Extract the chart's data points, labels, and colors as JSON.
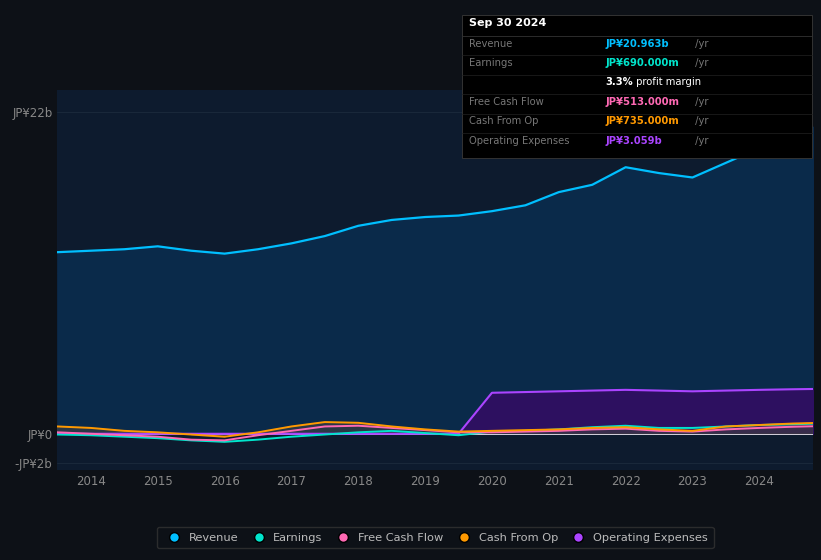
{
  "bg_color": "#0d1117",
  "plot_bg_color": "#0d1b2e",
  "years": [
    2013.5,
    2014.0,
    2014.5,
    2015.0,
    2015.5,
    2016.0,
    2016.5,
    2017.0,
    2017.5,
    2018.0,
    2018.5,
    2019.0,
    2019.5,
    2020.0,
    2020.5,
    2021.0,
    2021.5,
    2022.0,
    2022.5,
    2023.0,
    2023.5,
    2024.0,
    2024.5,
    2024.8
  ],
  "revenue": [
    12.4,
    12.5,
    12.6,
    12.8,
    12.5,
    12.3,
    12.6,
    13.0,
    13.5,
    14.2,
    14.6,
    14.8,
    14.9,
    15.2,
    15.6,
    16.5,
    17.0,
    18.2,
    17.8,
    17.5,
    18.5,
    19.5,
    20.5,
    20.963
  ],
  "earnings": [
    -0.05,
    -0.1,
    -0.2,
    -0.3,
    -0.45,
    -0.55,
    -0.4,
    -0.2,
    -0.05,
    0.1,
    0.2,
    0.05,
    -0.1,
    0.15,
    0.2,
    0.3,
    0.45,
    0.55,
    0.4,
    0.4,
    0.5,
    0.6,
    0.65,
    0.69
  ],
  "free_cash_flow": [
    0.1,
    0.0,
    -0.1,
    -0.2,
    -0.4,
    -0.45,
    -0.1,
    0.2,
    0.5,
    0.55,
    0.4,
    0.25,
    0.1,
    0.1,
    0.15,
    0.2,
    0.3,
    0.35,
    0.2,
    0.15,
    0.3,
    0.4,
    0.48,
    0.513
  ],
  "cash_from_op": [
    0.5,
    0.4,
    0.2,
    0.1,
    -0.05,
    -0.2,
    0.1,
    0.5,
    0.8,
    0.75,
    0.5,
    0.3,
    0.15,
    0.2,
    0.25,
    0.3,
    0.4,
    0.45,
    0.3,
    0.2,
    0.5,
    0.6,
    0.7,
    0.735
  ],
  "operating_expenses": [
    0.0,
    0.0,
    0.0,
    0.0,
    0.0,
    0.0,
    0.0,
    0.0,
    0.0,
    0.0,
    0.0,
    0.0,
    0.0,
    2.8,
    2.85,
    2.9,
    2.95,
    3.0,
    2.95,
    2.9,
    2.95,
    3.0,
    3.04,
    3.059
  ],
  "revenue_color": "#00bfff",
  "earnings_color": "#00e5cc",
  "fcf_color": "#ff69b4",
  "cash_op_color": "#ff9900",
  "op_exp_color": "#aa44ff",
  "revenue_fill": "#0a2a4a",
  "op_exp_fill": "#2d1060",
  "ylim_min": -2.5,
  "ylim_max": 23.5,
  "ytick_vals": [
    -2,
    0,
    22
  ],
  "ytick_labels": [
    "-JP¥2b",
    "JP¥0",
    "JP¥22b"
  ],
  "xtick_vals": [
    2014,
    2015,
    2016,
    2017,
    2018,
    2019,
    2020,
    2021,
    2022,
    2023,
    2024
  ],
  "legend_items": [
    "Revenue",
    "Earnings",
    "Free Cash Flow",
    "Cash From Op",
    "Operating Expenses"
  ],
  "legend_colors": [
    "#00bfff",
    "#00e5cc",
    "#ff69b4",
    "#ff9900",
    "#aa44ff"
  ],
  "info_box_title": "Sep 30 2024",
  "info_rows": [
    {
      "label": "Revenue",
      "value": "JP¥20.963b",
      "suffix": " /yr",
      "value_color": "#00bfff"
    },
    {
      "label": "Earnings",
      "value": "JP¥690.000m",
      "suffix": " /yr",
      "value_color": "#00e5cc"
    },
    {
      "label": "",
      "value": "3.3%",
      "suffix": " profit margin",
      "value_color": "#ffffff",
      "bold": true
    },
    {
      "label": "Free Cash Flow",
      "value": "JP¥513.000m",
      "suffix": " /yr",
      "value_color": "#ff69b4"
    },
    {
      "label": "Cash From Op",
      "value": "JP¥735.000m",
      "suffix": " /yr",
      "value_color": "#ff9900"
    },
    {
      "label": "Operating Expenses",
      "value": "JP¥3.059b",
      "suffix": " /yr",
      "value_color": "#aa44ff"
    }
  ]
}
